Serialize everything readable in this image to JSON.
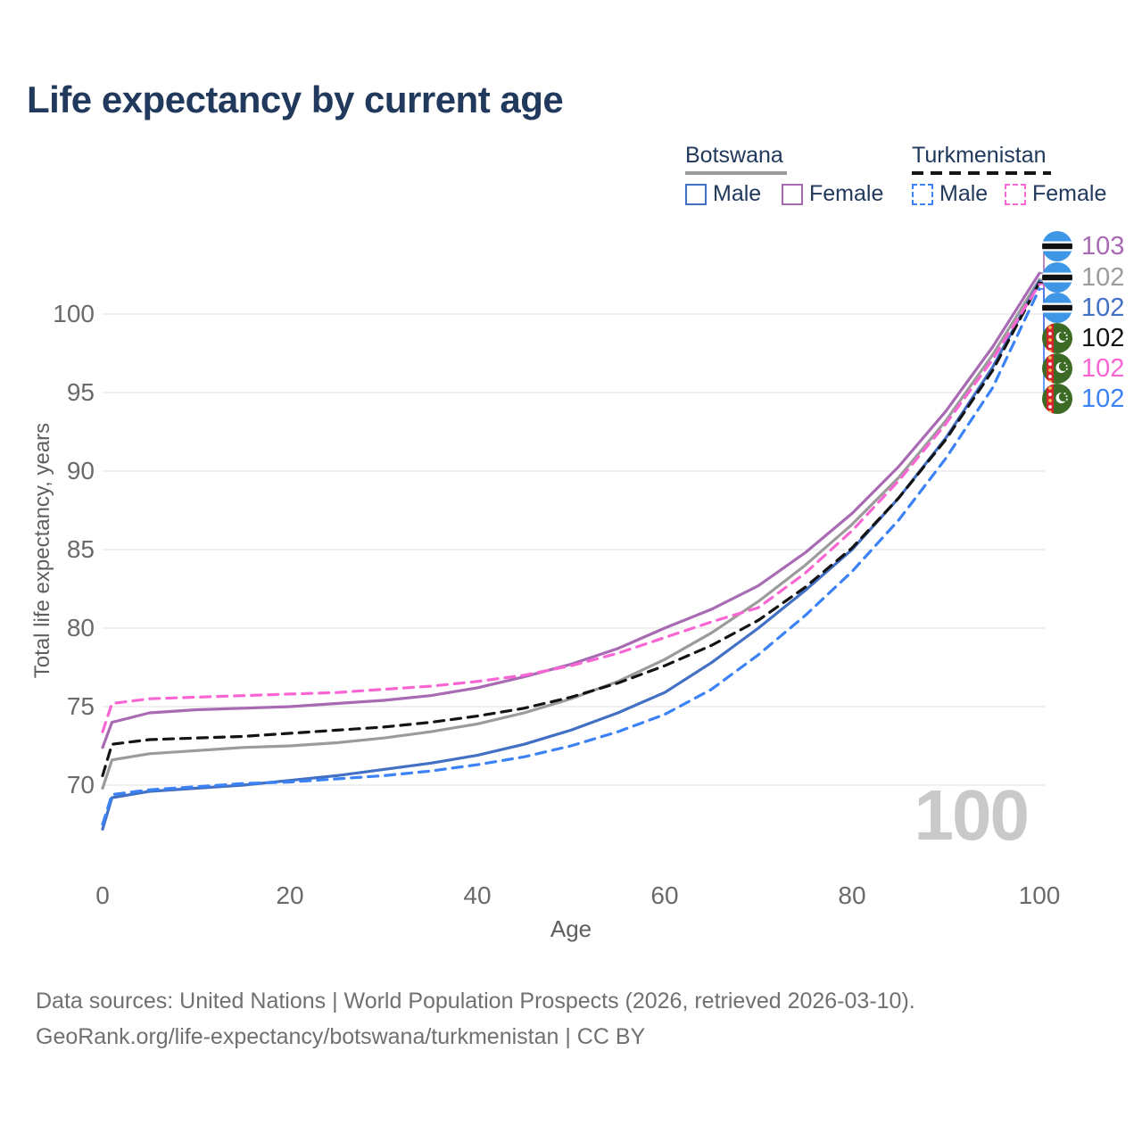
{
  "header": {
    "title": "Life expectancy by current age"
  },
  "legend": {
    "groups": [
      {
        "title": "Botswana",
        "underline": "solid",
        "underline_color": "#9a9a9a",
        "items": [
          {
            "label": "Male",
            "color": "#4170c4",
            "dash": "solid"
          },
          {
            "label": "Female",
            "color": "#a76ab3",
            "dash": "solid"
          }
        ]
      },
      {
        "title": "Turkmenistan",
        "underline": "dashed",
        "underline_color": "#141414",
        "items": [
          {
            "label": "Male",
            "color": "#3b82f6",
            "dash": "dashed"
          },
          {
            "label": "Female",
            "color": "#f966d4",
            "dash": "dashed"
          }
        ]
      }
    ]
  },
  "chart_data": {
    "type": "line",
    "title": "Life expectancy by current age",
    "xlabel": "Age",
    "ylabel": "Total life expectancy, years",
    "x_ticks": [
      0,
      20,
      40,
      60,
      80,
      100
    ],
    "y_ticks": [
      70,
      75,
      80,
      85,
      90,
      95,
      100
    ],
    "xlim": [
      0,
      100
    ],
    "ylim": [
      66.5,
      103.5
    ],
    "grid": "horizontal",
    "legend_position": "top-right",
    "watermark": "100",
    "ages": [
      0,
      1,
      5,
      10,
      15,
      20,
      25,
      30,
      35,
      40,
      45,
      50,
      55,
      60,
      65,
      70,
      75,
      80,
      85,
      90,
      95,
      100
    ],
    "series": [
      {
        "id": "botswana-female",
        "name": "Botswana Female",
        "country": "Botswana",
        "sex": "Female",
        "color": "#a76ab3",
        "dash": "solid",
        "end_label": "103",
        "values": [
          72.4,
          74.0,
          74.6,
          74.8,
          74.9,
          75.0,
          75.2,
          75.4,
          75.7,
          76.2,
          76.9,
          77.7,
          78.7,
          80.0,
          81.2,
          82.7,
          84.8,
          87.3,
          90.3,
          93.8,
          97.9,
          102.6
        ]
      },
      {
        "id": "botswana-both",
        "name": "Botswana Both sexes",
        "country": "Botswana",
        "sex": "Both",
        "color": "#9b9b9b",
        "dash": "solid",
        "end_label": "102",
        "values": [
          69.8,
          71.6,
          72.0,
          72.2,
          72.4,
          72.5,
          72.7,
          73.0,
          73.4,
          73.9,
          74.6,
          75.5,
          76.6,
          78.0,
          79.7,
          81.7,
          84.0,
          86.6,
          89.6,
          93.2,
          97.4,
          102.2
        ]
      },
      {
        "id": "botswana-male",
        "name": "Botswana Male",
        "country": "Botswana",
        "sex": "Male",
        "color": "#4170c4",
        "dash": "solid",
        "end_label": "102",
        "values": [
          67.2,
          69.2,
          69.6,
          69.8,
          70.0,
          70.3,
          70.6,
          71.0,
          71.4,
          71.9,
          72.6,
          73.5,
          74.6,
          75.9,
          77.8,
          80.0,
          82.4,
          85.0,
          88.3,
          92.1,
          96.6,
          102.1
        ]
      },
      {
        "id": "turkmenistan-both",
        "name": "Turkmenistan Both sexes",
        "country": "Turkmenistan",
        "sex": "Both",
        "color": "#141414",
        "dash": "dashed",
        "end_label": "102",
        "values": [
          70.6,
          72.6,
          72.9,
          73.0,
          73.1,
          73.3,
          73.5,
          73.7,
          74.0,
          74.4,
          74.9,
          75.6,
          76.5,
          77.6,
          78.9,
          80.5,
          82.6,
          85.1,
          88.3,
          92.0,
          96.4,
          102.0
        ]
      },
      {
        "id": "turkmenistan-female",
        "name": "Turkmenistan Female",
        "country": "Turkmenistan",
        "sex": "Female",
        "color": "#f966d4",
        "dash": "dashed",
        "end_label": "102",
        "values": [
          73.4,
          75.2,
          75.5,
          75.6,
          75.7,
          75.8,
          75.9,
          76.1,
          76.3,
          76.6,
          77.0,
          77.6,
          78.4,
          79.4,
          80.4,
          81.3,
          83.5,
          86.2,
          89.4,
          93.0,
          97.1,
          101.9
        ]
      },
      {
        "id": "turkmenistan-male",
        "name": "Turkmenistan Male",
        "country": "Turkmenistan",
        "sex": "Male",
        "color": "#3b82f6",
        "dash": "dashed",
        "end_label": "102",
        "values": [
          67.5,
          69.4,
          69.7,
          69.9,
          70.1,
          70.2,
          70.4,
          70.6,
          70.9,
          71.3,
          71.8,
          72.5,
          73.4,
          74.5,
          76.1,
          78.3,
          80.8,
          83.6,
          86.9,
          90.8,
          95.3,
          101.6
        ]
      }
    ]
  },
  "flags": {
    "botswana_blue": "#3e97e6",
    "botswana_black": "#111111",
    "turkmenistan_green": "#3d6b26",
    "turkmenistan_red": "#d8242e",
    "turkmenistan_gold": "#e8c24a"
  },
  "footer": {
    "line1": "Data sources: United Nations | World Population Prospects (2026, retrieved 2026-03-10).",
    "line2": "GeoRank.org/life-expectancy/botswana/turkmenistan | CC BY"
  }
}
